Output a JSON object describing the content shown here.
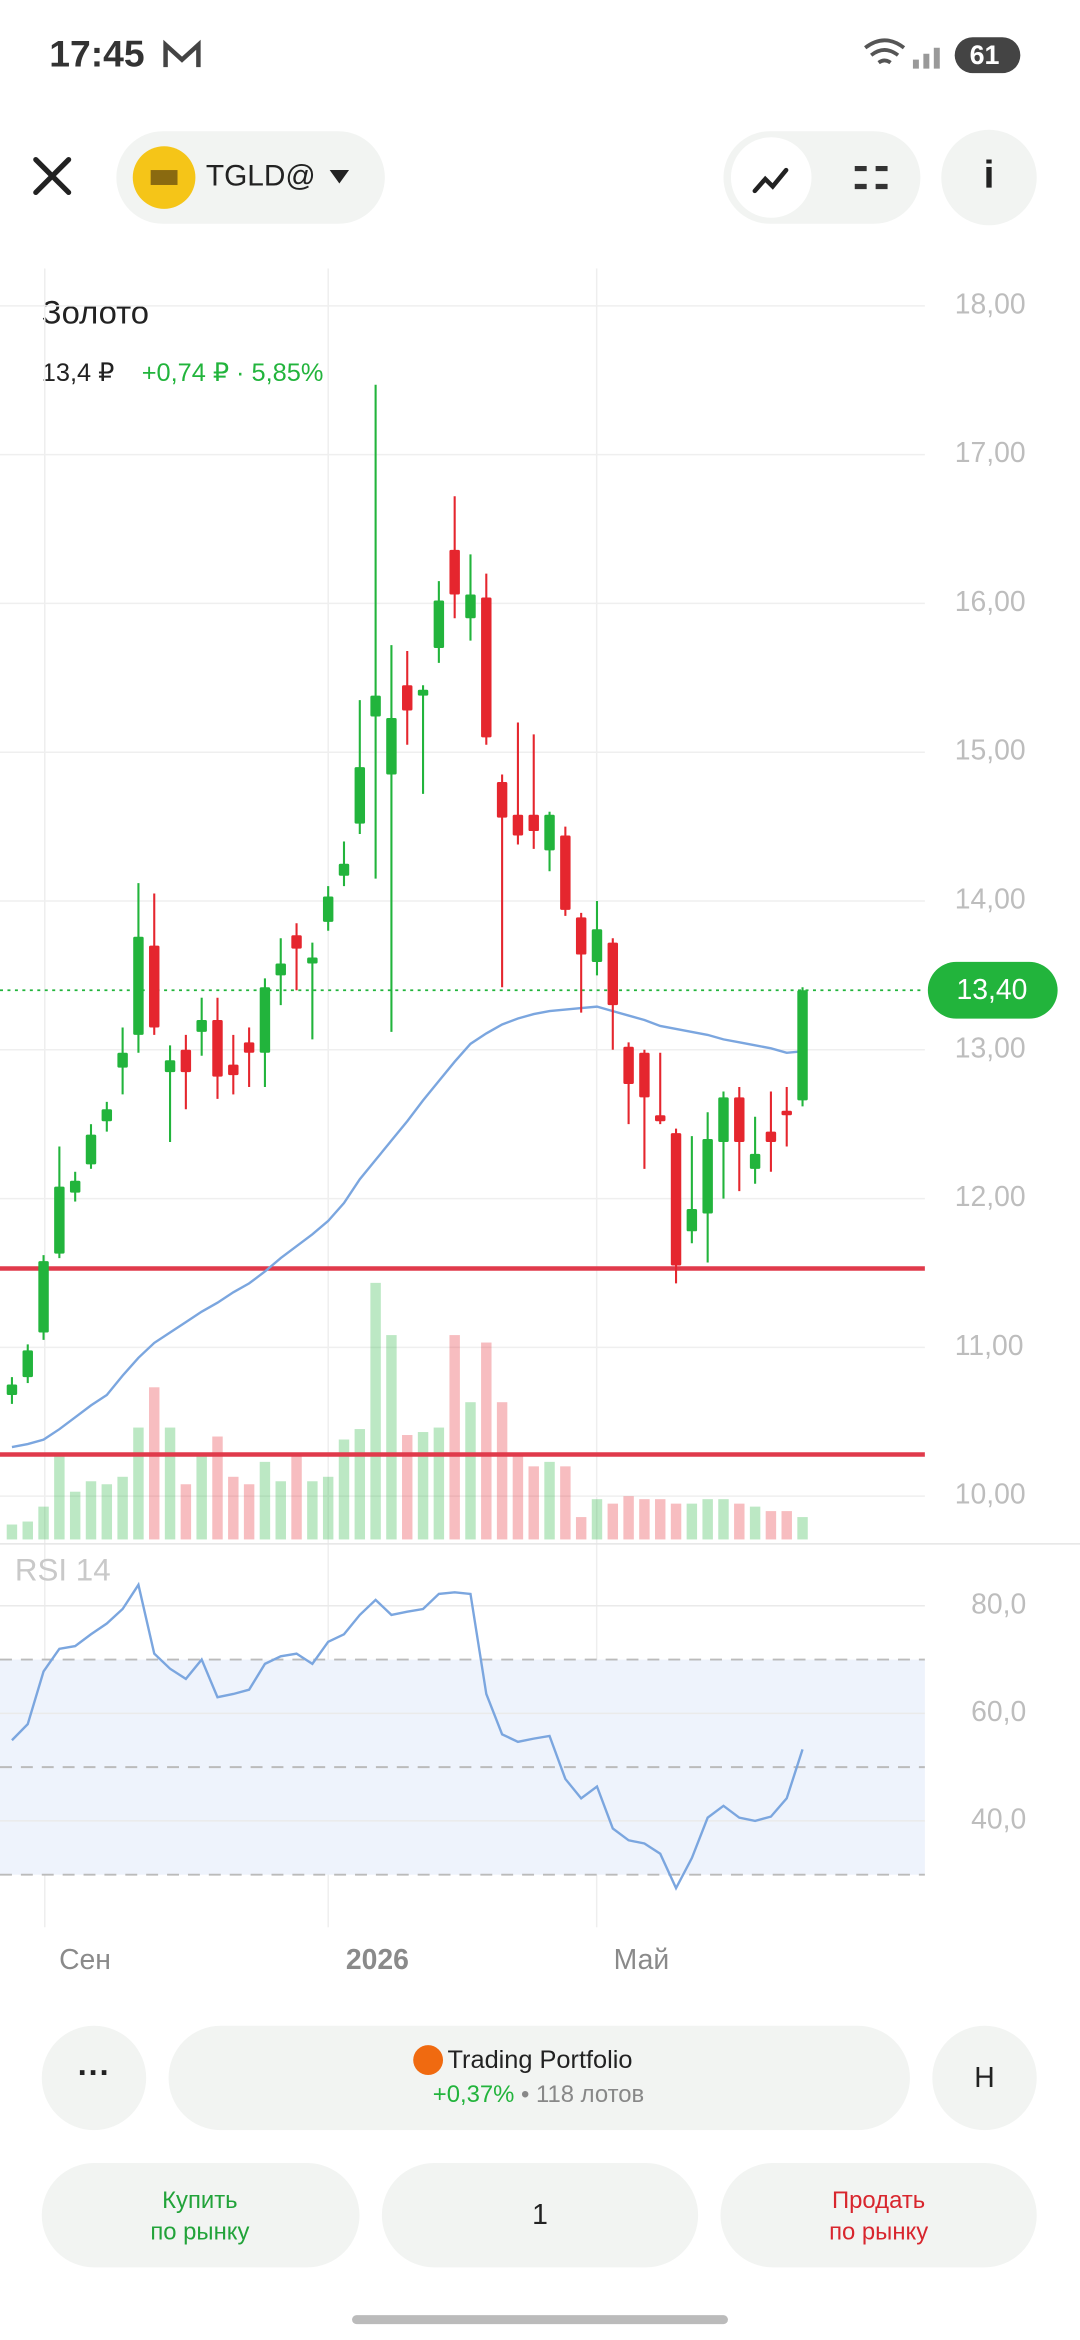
{
  "status_bar": {
    "time": "17:45",
    "battery": "61"
  },
  "header": {
    "ticker": "TGLD@"
  },
  "instrument": {
    "name": "Золото",
    "price": "13,4 ₽",
    "change": "+0,74 ₽ · 5,85%"
  },
  "price_chart": {
    "type": "candlestick",
    "ylim": [
      9.7,
      18.3
    ],
    "yticks": [
      {
        "value": 18,
        "label": "18,00"
      },
      {
        "value": 17,
        "label": "17,00"
      },
      {
        "value": 16,
        "label": "16,00"
      },
      {
        "value": 15,
        "label": "15,00"
      },
      {
        "value": 14,
        "label": "14,00"
      },
      {
        "value": 13,
        "label": "13,00"
      },
      {
        "value": 12,
        "label": "12,00"
      },
      {
        "value": 11,
        "label": "11,00"
      },
      {
        "value": 10,
        "label": "10,00"
      }
    ],
    "open": [
      10.68,
      10.8,
      11.1,
      11.63,
      12.04,
      12.23,
      12.52,
      12.88,
      13.1,
      13.7,
      12.85,
      13.0,
      13.12,
      13.2,
      12.9,
      13.05,
      12.98,
      13.5,
      13.77,
      13.58,
      13.86,
      14.17,
      14.52,
      15.24,
      14.85,
      15.45,
      15.38,
      15.7,
      16.36,
      15.9,
      16.04,
      14.8,
      14.58,
      14.58,
      14.34,
      14.44,
      13.89,
      13.59,
      13.72,
      13.02,
      12.98,
      12.56,
      12.44,
      11.78,
      11.9,
      12.38,
      12.68,
      12.2,
      12.45,
      12.59,
      12.66
    ],
    "high": [
      10.8,
      11.02,
      11.62,
      12.35,
      12.18,
      12.5,
      12.65,
      13.15,
      14.12,
      14.05,
      13.03,
      13.1,
      13.35,
      13.35,
      13.1,
      13.15,
      13.48,
      13.75,
      13.85,
      13.72,
      14.1,
      14.4,
      15.35,
      17.47,
      15.72,
      15.68,
      15.45,
      16.15,
      16.72,
      16.33,
      16.2,
      14.85,
      15.2,
      15.12,
      14.6,
      14.5,
      13.92,
      14.0,
      13.75,
      13.05,
      13.0,
      12.98,
      12.47,
      12.42,
      12.58,
      12.72,
      12.75,
      12.55,
      12.72,
      12.75,
      13.42
    ],
    "low": [
      10.62,
      10.76,
      11.05,
      11.6,
      11.98,
      12.2,
      12.45,
      12.7,
      12.98,
      13.1,
      12.38,
      12.6,
      12.96,
      12.67,
      12.7,
      12.75,
      12.75,
      13.3,
      13.4,
      13.07,
      13.8,
      14.1,
      14.45,
      14.15,
      13.12,
      15.05,
      14.72,
      15.6,
      15.9,
      15.75,
      15.05,
      13.42,
      14.38,
      14.35,
      14.2,
      13.9,
      13.25,
      13.5,
      13.0,
      12.5,
      12.2,
      12.5,
      11.43,
      11.7,
      11.57,
      12.0,
      12.05,
      12.1,
      12.18,
      12.35,
      12.62
    ],
    "close": [
      10.75,
      10.98,
      11.58,
      12.08,
      12.12,
      12.43,
      12.6,
      12.98,
      13.76,
      13.15,
      12.93,
      12.85,
      13.2,
      12.82,
      12.83,
      12.98,
      13.42,
      13.58,
      13.68,
      13.62,
      14.03,
      14.25,
      14.9,
      15.38,
      15.23,
      15.28,
      15.42,
      16.02,
      16.06,
      16.06,
      15.1,
      14.56,
      14.44,
      14.47,
      14.58,
      13.94,
      13.64,
      13.81,
      13.3,
      12.77,
      12.68,
      12.52,
      11.55,
      11.93,
      12.4,
      12.68,
      12.38,
      12.3,
      12.38,
      12.56,
      13.4
    ],
    "ma": [
      10.33,
      10.35,
      10.38,
      10.45,
      10.53,
      10.61,
      10.68,
      10.81,
      10.93,
      11.03,
      11.1,
      11.17,
      11.24,
      11.3,
      11.37,
      11.43,
      11.51,
      11.6,
      11.68,
      11.76,
      11.85,
      11.97,
      12.13,
      12.26,
      12.39,
      12.52,
      12.66,
      12.79,
      12.92,
      13.04,
      13.11,
      13.17,
      13.21,
      13.24,
      13.26,
      13.27,
      13.28,
      13.29,
      13.26,
      13.23,
      13.2,
      13.16,
      13.14,
      13.12,
      13.1,
      13.07,
      13.05,
      13.03,
      13.01,
      12.98,
      12.99
    ],
    "volume": [
      10,
      12,
      22,
      57,
      32,
      39,
      37,
      42,
      75,
      102,
      75,
      37,
      57,
      69,
      42,
      37,
      52,
      39,
      57,
      39,
      42,
      67,
      74,
      172,
      137,
      70,
      72,
      75,
      137,
      92,
      132,
      92,
      57,
      49,
      52,
      49,
      15,
      27,
      24,
      29,
      27,
      27,
      24,
      24,
      27,
      27,
      24,
      22,
      19,
      19,
      15
    ],
    "current_price": {
      "value": 13.4,
      "label": "13,40"
    },
    "levels": [
      11.53,
      10.28
    ],
    "x_labels": [
      "Сен",
      "2026",
      "Май"
    ],
    "up_color": "#22b43c",
    "down_color": "#e5262e",
    "ma_color": "#7ba6df",
    "level_color": "#e03a4b",
    "grid": true
  },
  "rsi_chart": {
    "title": "RSI 14",
    "ylim": [
      20.5,
      91.5
    ],
    "yticks": [
      {
        "value": 80,
        "label": "80,0"
      },
      {
        "value": 60,
        "label": "60,0"
      },
      {
        "value": 40,
        "label": "40,0"
      }
    ],
    "levels": [
      70,
      50,
      30
    ],
    "values": [
      55,
      58,
      67.8,
      72,
      72.5,
      74.7,
      76.7,
      79.4,
      83.9,
      71.1,
      68.3,
      66.4,
      70,
      63,
      63.6,
      64.4,
      69.2,
      70.6,
      71.1,
      69.2,
      73.3,
      74.7,
      78.3,
      81.1,
      78.3,
      78.9,
      79.4,
      82.2,
      82.5,
      82.2,
      63.6,
      56.1,
      54.7,
      55.3,
      55.8,
      47.8,
      44.2,
      46.4,
      38.6,
      36.4,
      35.8,
      33.9,
      27.5,
      33.1,
      40.6,
      42.8,
      40.6,
      40,
      40.8,
      44.2,
      53.3
    ],
    "color": "#7ba6df"
  },
  "portfolio": {
    "name": "Trading Portfolio",
    "change": "+0,37%",
    "lots": " • 118 лотов"
  },
  "buttons": {
    "mode": "Н",
    "buy": [
      "Купить",
      "по рынку"
    ],
    "quantity": "1",
    "sell": [
      "Продать",
      "по рынку"
    ]
  }
}
